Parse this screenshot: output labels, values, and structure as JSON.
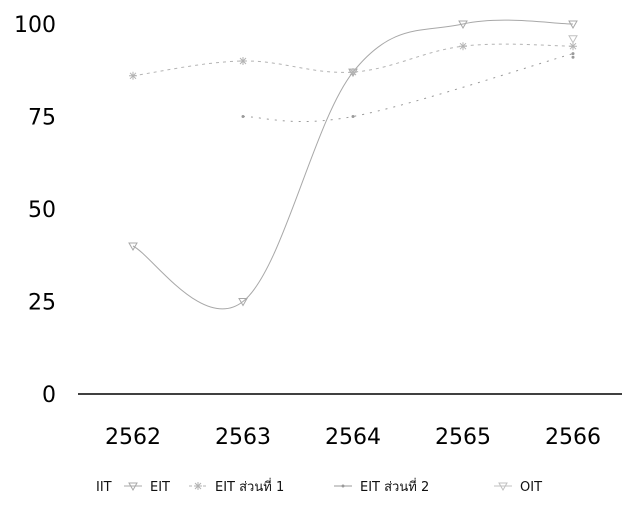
{
  "chart_data": {
    "type": "line",
    "categories": [
      "2562",
      "2563",
      "2564",
      "2565",
      "2566"
    ],
    "ylim": [
      0,
      100
    ],
    "y_ticks": [
      "0",
      "25",
      "50",
      "75",
      "100"
    ],
    "grid": false,
    "legend_position": "bottom",
    "series": [
      {
        "name": "IIT",
        "values": [
          null,
          75,
          75,
          null,
          92
        ],
        "color": "#9a9a9a",
        "marker": "none",
        "dash": "2 6"
      },
      {
        "name": "EIT",
        "values": [
          40,
          25,
          87,
          100,
          100
        ],
        "color": "#a8a8a8",
        "marker": "triangle-down",
        "dash": ""
      },
      {
        "name": "EIT ส่วนที่ 1",
        "values": [
          86,
          90,
          87,
          94,
          94
        ],
        "color": "#b3b3b3",
        "marker": "asterisk",
        "dash": "3 4"
      },
      {
        "name": "EIT ส่วนที่ 2",
        "values": [
          null,
          null,
          null,
          null,
          91
        ],
        "color": "#9a9a9a",
        "marker": "none",
        "dash": ""
      },
      {
        "name": "OIT",
        "values": [
          null,
          null,
          null,
          null,
          96
        ],
        "color": "#c0c0c0",
        "marker": "triangle-down",
        "dash": ""
      }
    ]
  }
}
